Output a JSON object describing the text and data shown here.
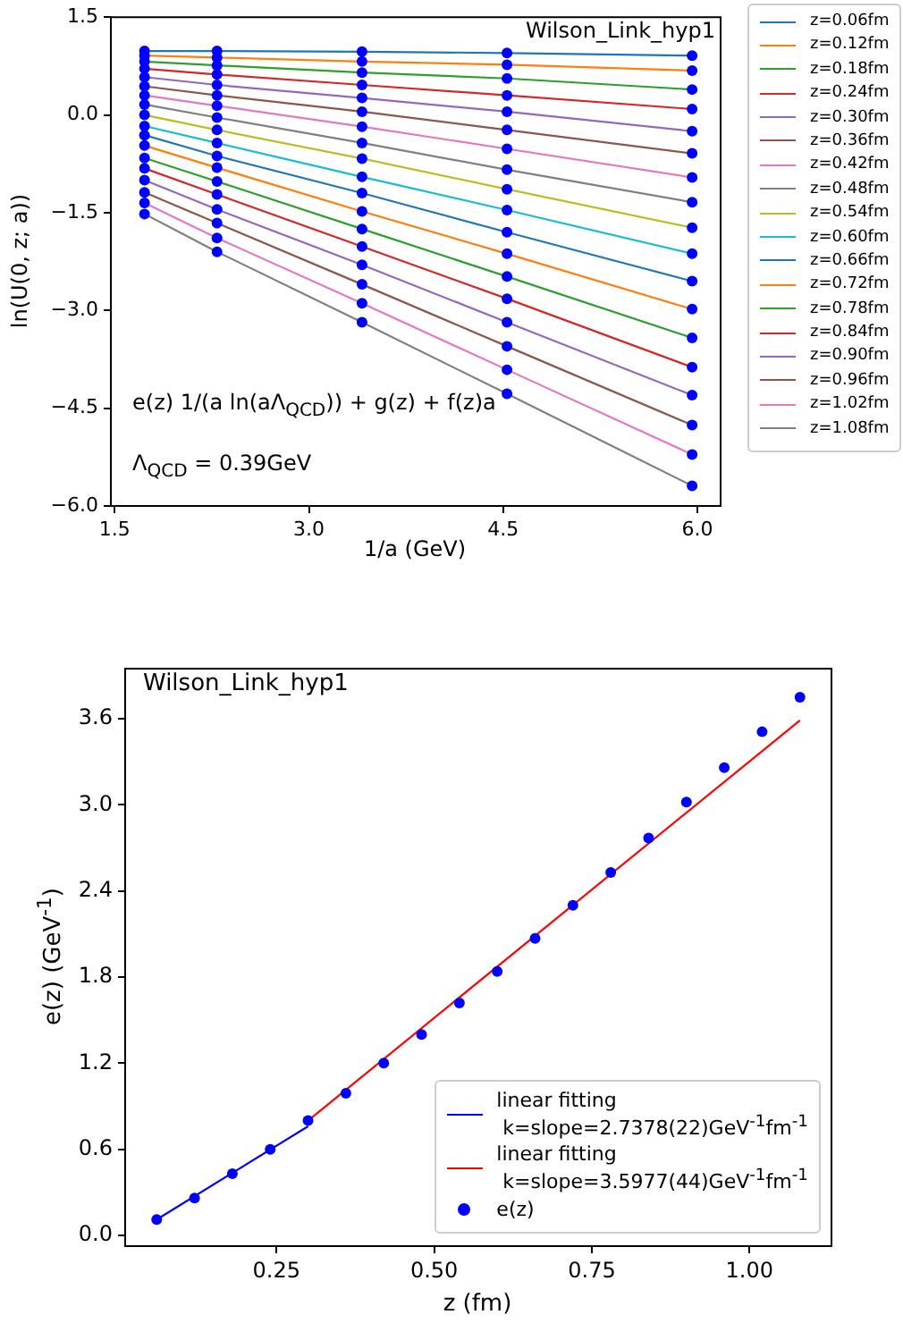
{
  "chart_data": [
    {
      "type": "line",
      "xlabel": "1/a (GeV)",
      "ylabel": "ln(U(0, z; a))",
      "annotations": [
        "Wilson_Link_hyp1",
        "e(z) 1/(a ln(aΛ$_{QCD}$)) + g(z) + f(z)a",
        "Λ$_{QCD}$ = 0.39GeV"
      ],
      "x": [
        1.73,
        2.29,
        3.41,
        4.53,
        5.96
      ],
      "marker": "none",
      "legend": "right",
      "grid": false,
      "xlim": [
        1.47,
        6.18
      ],
      "xticks": [
        {
          "value": 1.5,
          "label": "1.5"
        },
        {
          "value": 3,
          "label": "3.0"
        },
        {
          "value": 4.5,
          "label": "4.5"
        },
        {
          "value": 6,
          "label": "6.0"
        }
      ],
      "ylim": [
        -6,
        1.5
      ],
      "yticks": [
        {
          "value": -6,
          "label": "−6.0"
        },
        {
          "value": -4.5,
          "label": "−4.5"
        },
        {
          "value": -3,
          "label": "−3.0"
        },
        {
          "value": -1.5,
          "label": "−1.5"
        },
        {
          "value": 0,
          "label": "0.0"
        },
        {
          "value": 1.5,
          "label": "1.5"
        }
      ],
      "series": [
        {
          "name": "z=0.06fm",
          "color": "#1f77b4",
          "values": [
            0.98,
            0.98,
            0.97,
            0.95,
            0.91
          ]
        },
        {
          "name": "z=0.12fm",
          "color": "#ff7f0e",
          "values": [
            0.91,
            0.88,
            0.82,
            0.77,
            0.68
          ]
        },
        {
          "name": "z=0.18fm",
          "color": "#2ca02c",
          "values": [
            0.82,
            0.76,
            0.65,
            0.56,
            0.39
          ]
        },
        {
          "name": "z=0.24fm",
          "color": "#d62728",
          "values": [
            0.71,
            0.62,
            0.46,
            0.3,
            0.09
          ]
        },
        {
          "name": "z=0.30fm",
          "color": "#9467bd",
          "values": [
            0.58,
            0.46,
            0.26,
            0.05,
            -0.25
          ]
        },
        {
          "name": "z=0.36fm",
          "color": "#8c564b",
          "values": [
            0.44,
            0.3,
            0.05,
            -0.23,
            -0.59
          ]
        },
        {
          "name": "z=0.42fm",
          "color": "#e377c2",
          "values": [
            0.3,
            0.14,
            -0.18,
            -0.52,
            -0.96
          ]
        },
        {
          "name": "z=0.48fm",
          "color": "#7f7f7f",
          "values": [
            0.16,
            -0.04,
            -0.43,
            -0.84,
            -1.34
          ]
        },
        {
          "name": "z=0.54fm",
          "color": "#bcbd22",
          "values": [
            0.0,
            -0.23,
            -0.67,
            -1.14,
            -1.73
          ]
        },
        {
          "name": "z=0.60fm",
          "color": "#17becf",
          "values": [
            -0.17,
            -0.43,
            -0.95,
            -1.46,
            -2.13
          ]
        },
        {
          "name": "z=0.66fm",
          "color": "#1f77b4",
          "values": [
            -0.31,
            -0.63,
            -1.2,
            -1.8,
            -2.55
          ]
        },
        {
          "name": "z=0.72fm",
          "color": "#ff7f0e",
          "values": [
            -0.47,
            -0.81,
            -1.48,
            -2.13,
            -2.98
          ]
        },
        {
          "name": "z=0.78fm",
          "color": "#2ca02c",
          "values": [
            -0.66,
            -1.02,
            -1.75,
            -2.48,
            -3.42
          ]
        },
        {
          "name": "z=0.84fm",
          "color": "#d62728",
          "values": [
            -0.82,
            -1.22,
            -2.02,
            -2.82,
            -3.87
          ]
        },
        {
          "name": "z=0.90fm",
          "color": "#9467bd",
          "values": [
            -1.0,
            -1.45,
            -2.3,
            -3.18,
            -4.3
          ]
        },
        {
          "name": "z=0.96fm",
          "color": "#8c564b",
          "values": [
            -1.19,
            -1.66,
            -2.6,
            -3.55,
            -4.76
          ]
        },
        {
          "name": "z=1.02fm",
          "color": "#e377c2",
          "values": [
            -1.35,
            -1.89,
            -2.89,
            -3.91,
            -5.21
          ]
        },
        {
          "name": "z=1.08fm",
          "color": "#7f7f7f",
          "values": [
            -1.52,
            -2.1,
            -3.18,
            -4.28,
            -5.69
          ]
        },
        {
          "type": "scatter",
          "marker": "circle",
          "color": "#0000ff",
          "x": [
            1.73,
            1.73,
            1.73,
            1.73,
            1.73,
            1.73,
            1.73,
            1.73,
            1.73,
            1.73,
            1.73,
            1.73,
            1.73,
            1.73,
            1.73,
            1.73,
            1.73,
            1.73,
            2.29,
            2.29,
            2.29,
            2.29,
            2.29,
            2.29,
            2.29,
            2.29,
            2.29,
            2.29,
            2.29,
            2.29,
            2.29,
            2.29,
            2.29,
            2.29,
            2.29,
            2.29,
            3.41,
            3.41,
            3.41,
            3.41,
            3.41,
            3.41,
            3.41,
            3.41,
            3.41,
            3.41,
            3.41,
            3.41,
            3.41,
            3.41,
            3.41,
            3.41,
            3.41,
            3.41,
            4.53,
            4.53,
            4.53,
            4.53,
            4.53,
            4.53,
            4.53,
            4.53,
            4.53,
            4.53,
            4.53,
            4.53,
            4.53,
            4.53,
            4.53,
            4.53,
            4.53,
            4.53,
            5.96,
            5.96,
            5.96,
            5.96,
            5.96,
            5.96,
            5.96,
            5.96,
            5.96,
            5.96,
            5.96,
            5.96,
            5.96,
            5.96,
            5.96,
            5.96,
            5.96,
            5.96
          ],
          "values": [
            0.98,
            0.91,
            0.82,
            0.71,
            0.58,
            0.44,
            0.3,
            0.16,
            0.0,
            -0.17,
            -0.31,
            -0.47,
            -0.66,
            -0.82,
            -1.0,
            -1.19,
            -1.35,
            -1.52,
            0.98,
            0.88,
            0.76,
            0.62,
            0.46,
            0.3,
            0.14,
            -0.04,
            -0.23,
            -0.43,
            -0.63,
            -0.81,
            -1.02,
            -1.22,
            -1.45,
            -1.66,
            -1.89,
            -2.1,
            0.97,
            0.82,
            0.65,
            0.46,
            0.26,
            0.05,
            -0.18,
            -0.43,
            -0.67,
            -0.95,
            -1.2,
            -1.48,
            -1.75,
            -2.02,
            -2.3,
            -2.6,
            -2.89,
            -3.18,
            0.95,
            0.77,
            0.56,
            0.3,
            0.05,
            -0.23,
            -0.52,
            -0.84,
            -1.14,
            -1.46,
            -1.8,
            -2.13,
            -2.48,
            -2.82,
            -3.18,
            -3.55,
            -3.91,
            -4.28,
            0.91,
            0.68,
            0.39,
            0.09,
            -0.25,
            -0.59,
            -0.96,
            -1.34,
            -1.73,
            -2.13,
            -2.55,
            -2.98,
            -3.42,
            -3.87,
            -4.3,
            -4.76,
            -5.21,
            -5.69
          ]
        }
      ]
    },
    {
      "type": "scatter",
      "xlabel": "z (fm)",
      "ylabel": "e(z) (GeV$^{-1}$)",
      "annotations": [
        "Wilson_Link_hyp1"
      ],
      "marker": "circle",
      "legend": "bottom right",
      "grid": false,
      "x": [
        0.06,
        0.12,
        0.18,
        0.24,
        0.3,
        0.36,
        0.42,
        0.48,
        0.54,
        0.6,
        0.66,
        0.72,
        0.78,
        0.84,
        0.9,
        0.96,
        1.02,
        1.08
      ],
      "xlim": [
        0.01,
        1.13
      ],
      "xticks": [
        {
          "value": 0.25,
          "label": "0.25"
        },
        {
          "value": 0.5,
          "label": "0.50"
        },
        {
          "value": 0.75,
          "label": "0.75"
        },
        {
          "value": 1,
          "label": "1.00"
        }
      ],
      "ylim": [
        -0.075,
        3.95
      ],
      "yticks": [
        {
          "value": 0,
          "label": "0.0"
        },
        {
          "value": 0.6,
          "label": "0.6"
        },
        {
          "value": 1.2,
          "label": "1.2"
        },
        {
          "value": 1.8,
          "label": "1.8"
        },
        {
          "value": 2.4,
          "label": "2.4"
        },
        {
          "value": 3,
          "label": "3.0"
        },
        {
          "value": 3.6,
          "label": "3.6"
        }
      ],
      "series": [
        {
          "type": "line",
          "marker": "none",
          "name": "linear fitting\n k=slope=2.7378(22)GeV$^{-1}$fm$^{-1}$",
          "color": "#0000ff",
          "x": [
            0.06,
            0.3
          ],
          "values": [
            0.11,
            0.76
          ]
        },
        {
          "type": "line",
          "marker": "none",
          "name": "linear fitting\n k=slope=3.5977(44)GeV$^{-1}$fm$^{-1}$",
          "color": "#ff0000",
          "x": [
            0.3,
            1.08
          ],
          "values": [
            0.8,
            3.59
          ]
        },
        {
          "name": "e(z)",
          "color": "#0000ff",
          "values": [
            0.11,
            0.26,
            0.43,
            0.6,
            0.8,
            0.99,
            1.2,
            1.4,
            1.62,
            1.84,
            2.07,
            2.3,
            2.53,
            2.77,
            3.02,
            3.26,
            3.51,
            3.75
          ]
        }
      ]
    }
  ]
}
